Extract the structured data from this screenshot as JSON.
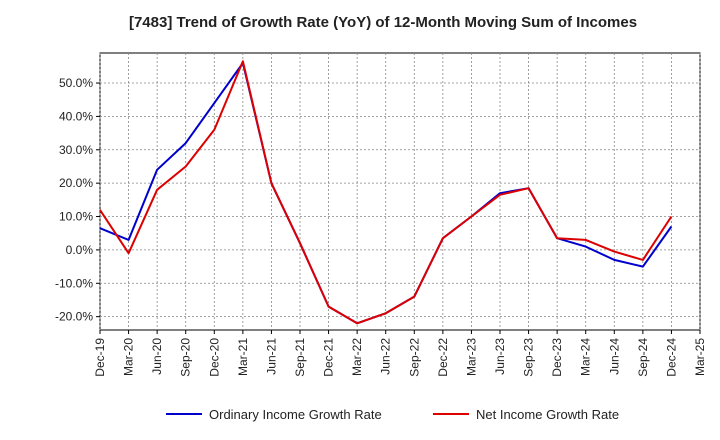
{
  "chart_data": {
    "type": "line",
    "title": "[7483]  Trend of Growth Rate (YoY) of 12-Month Moving Sum of Incomes",
    "xlabel": "",
    "ylabel": "",
    "categories": [
      "Dec-19",
      "Mar-20",
      "Jun-20",
      "Sep-20",
      "Dec-20",
      "Mar-21",
      "Jun-21",
      "Sep-21",
      "Dec-21",
      "Mar-22",
      "Jun-22",
      "Sep-22",
      "Dec-22",
      "Mar-23",
      "Jun-23",
      "Sep-23",
      "Dec-23",
      "Mar-24",
      "Jun-24",
      "Sep-24",
      "Dec-24",
      "Mar-25"
    ],
    "ylim": [
      -24,
      59
    ],
    "yticks": [
      50,
      40,
      30,
      20,
      10,
      0,
      -10,
      -20
    ],
    "ytick_labels": [
      "50.0%",
      "40.0%",
      "30.0%",
      "20.0%",
      "10.0%",
      "0.0%",
      "-10.0%",
      "-20.0%"
    ],
    "grid": true,
    "legend_position": "bottom",
    "series": [
      {
        "name": "Ordinary Income Growth Rate",
        "color": "#0000cc",
        "values": [
          6.5,
          3.0,
          24.0,
          32.0,
          44.0,
          56.0,
          20.0,
          2.0,
          -17.0,
          -22.0,
          -19.0,
          -14.0,
          3.5,
          10.0,
          17.0,
          18.5,
          3.5,
          1.0,
          -3.0,
          -5.0,
          7.0,
          null
        ]
      },
      {
        "name": "Net Income Growth Rate",
        "color": "#dd0000",
        "values": [
          12.0,
          -1.0,
          18.0,
          25.0,
          36.0,
          56.5,
          20.0,
          2.0,
          -17.0,
          -22.0,
          -19.0,
          -14.0,
          3.5,
          10.0,
          16.5,
          18.5,
          3.5,
          3.0,
          -0.5,
          -3.0,
          10.0,
          null
        ]
      }
    ]
  }
}
